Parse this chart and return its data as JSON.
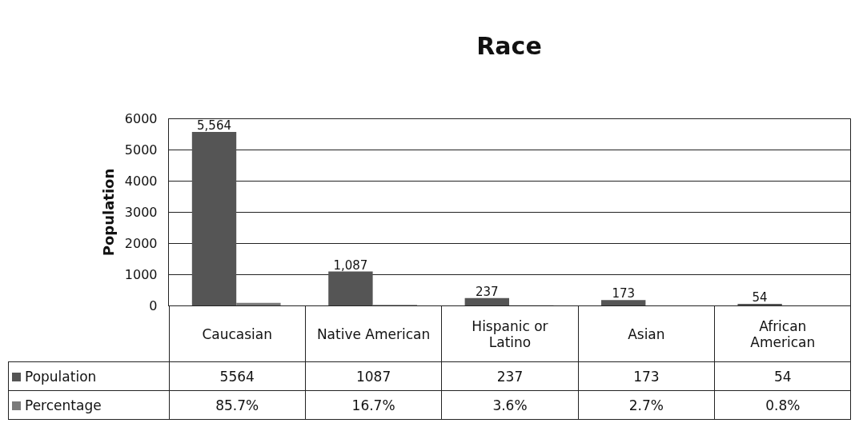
{
  "chart_data": {
    "type": "bar",
    "title": "Race",
    "ylabel": "Population",
    "categories": [
      "Caucasian",
      "Native American",
      "Hispanic or Latino",
      "Asian",
      "African American"
    ],
    "series": [
      {
        "name": "Population",
        "color": "#555555",
        "values": [
          5564,
          1087,
          237,
          173,
          54
        ],
        "value_labels": [
          "5564",
          "1087",
          "237",
          "173",
          "54"
        ]
      },
      {
        "name": "Percentage",
        "color": "#7a7a7a",
        "values": [
          85.7,
          16.7,
          3.6,
          2.7,
          0.8
        ],
        "value_labels": [
          "85.7%",
          "16.7%",
          "3.6%",
          "2.7%",
          "0.8%"
        ]
      }
    ],
    "annotations": [
      {
        "text": "5,564",
        "x": "Caucasian",
        "y": 5564
      },
      {
        "text": "1,087",
        "x": "Native American",
        "y": 1087
      },
      {
        "text": "237",
        "x": "Hispanic or Latino",
        "y": 237
      },
      {
        "text": "173",
        "x": "Asian",
        "y": 173
      },
      {
        "text": "54",
        "x": "African American",
        "y": 54
      }
    ],
    "ylim": [
      0,
      6000
    ],
    "yticks": [
      0,
      1000,
      2000,
      3000,
      4000,
      5000,
      6000
    ],
    "grid": "y",
    "legend": "bottom left"
  }
}
